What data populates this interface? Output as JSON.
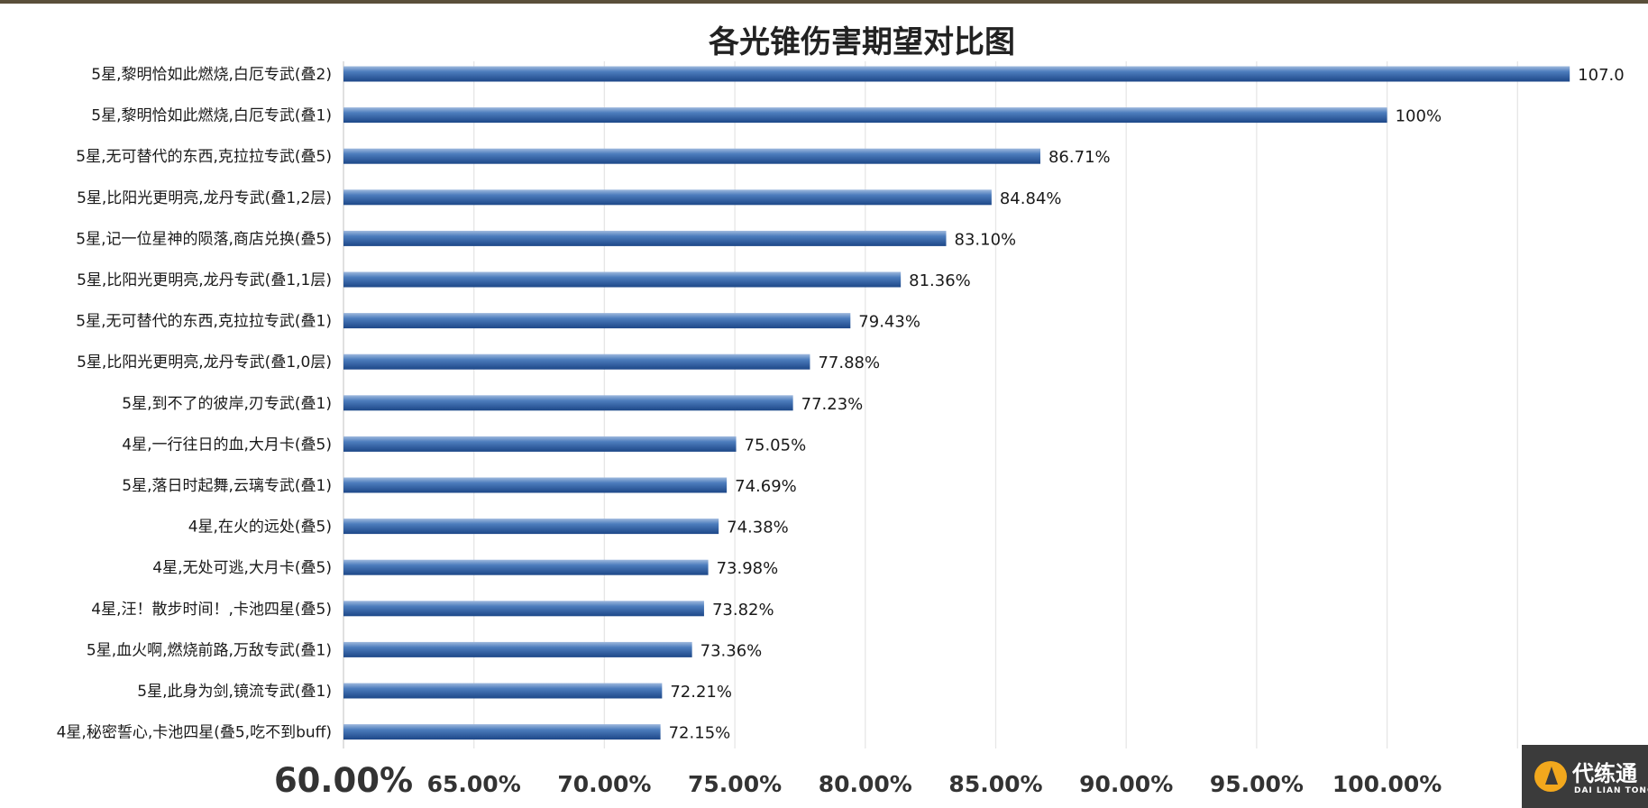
{
  "chart_data": {
    "type": "bar",
    "orientation": "horizontal",
    "title": "各光锥伤害期望对比图",
    "xlabel": "",
    "ylabel": "",
    "xlim": [
      60,
      110
    ],
    "grid": true,
    "x_ticks": [
      "60.00%",
      "65.00%",
      "70.00%",
      "75.00%",
      "80.00%",
      "85.00%",
      "90.00%",
      "95.00%",
      "100.00%"
    ],
    "categories": [
      "5星,黎明恰如此燃烧,白厄专武(叠2)",
      "5星,黎明恰如此燃烧,白厄专武(叠1)",
      "5星,无可替代的东西,克拉拉专武(叠5)",
      "5星,比阳光更明亮,龙丹专武(叠1,2层)",
      "5星,记一位星神的陨落,商店兑换(叠5)",
      "5星,比阳光更明亮,龙丹专武(叠1,1层)",
      "5星,无可替代的东西,克拉拉专武(叠1)",
      "5星,比阳光更明亮,龙丹专武(叠1,0层)",
      "5星,到不了的彼岸,刃专武(叠1)",
      "4星,一行往日的血,大月卡(叠5)",
      "5星,落日时起舞,云璃专武(叠1)",
      "4星,在火的远处(叠5)",
      "4星,无处可逃,大月卡(叠5)",
      "4星,汪！散步时间！,卡池四星(叠5)",
      "5星,血火啊,燃烧前路,万敌专武(叠1)",
      "5星,此身为剑,镜流专武(叠1)",
      "4星,秘密誓心,卡池四星(叠5,吃不到buff)"
    ],
    "values": [
      107.0,
      100,
      86.71,
      84.84,
      83.1,
      81.36,
      79.43,
      77.88,
      77.23,
      75.05,
      74.69,
      74.38,
      73.98,
      73.82,
      73.36,
      72.21,
      72.15
    ],
    "value_labels": [
      "107.0",
      "100%",
      "86.71%",
      "84.84%",
      "83.10%",
      "81.36%",
      "79.43%",
      "77.88%",
      "77.23%",
      "75.05%",
      "74.69%",
      "74.38%",
      "73.98%",
      "73.82%",
      "73.36%",
      "72.21%",
      "72.15%"
    ],
    "bar_color": "#2e5d9e"
  },
  "watermark": {
    "name": "代练通",
    "sub": "DAI LIAN TONG"
  }
}
